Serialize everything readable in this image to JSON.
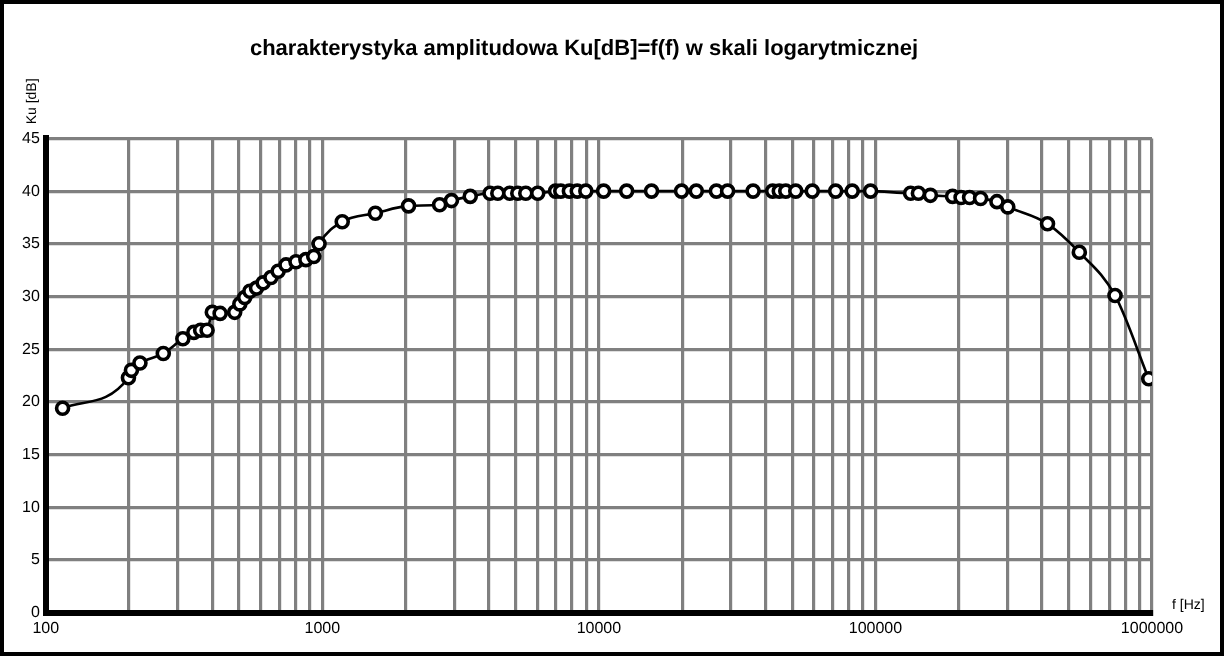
{
  "chart_data": {
    "type": "line",
    "title": "charakterystyka amplitudowa Ku[dB]=f(f) w skali logarytmicznej",
    "xlabel": "f [Hz]",
    "ylabel": "Ku [dB]",
    "log": "x",
    "grid": true,
    "legend": false,
    "marker": "circle",
    "line_style": "solid",
    "xlim": [
      100,
      1000000
    ],
    "ylim": [
      0,
      45
    ],
    "yticks": [
      0,
      5,
      10,
      15,
      20,
      25,
      30,
      35,
      40,
      45
    ],
    "xticks": [
      100,
      {
        "value": 200,
        "label": null
      },
      {
        "value": 300,
        "label": null
      },
      {
        "value": 400,
        "label": null
      },
      {
        "value": 500,
        "label": null
      },
      {
        "value": 600,
        "label": null
      },
      {
        "value": 700,
        "label": null
      },
      {
        "value": 800,
        "label": null
      },
      {
        "value": 900,
        "label": null
      },
      1000,
      {
        "value": 2000,
        "label": null
      },
      {
        "value": 3000,
        "label": null
      },
      {
        "value": 4000,
        "label": null
      },
      {
        "value": 5000,
        "label": null
      },
      {
        "value": 6000,
        "label": null
      },
      {
        "value": 7000,
        "label": null
      },
      {
        "value": 8000,
        "label": null
      },
      {
        "value": 9000,
        "label": null
      },
      10000,
      {
        "value": 20000,
        "label": null
      },
      {
        "value": 30000,
        "label": null
      },
      {
        "value": 40000,
        "label": null
      },
      {
        "value": 50000,
        "label": null
      },
      {
        "value": 60000,
        "label": null
      },
      {
        "value": 70000,
        "label": null
      },
      {
        "value": 80000,
        "label": null
      },
      {
        "value": 90000,
        "label": null
      },
      100000,
      {
        "value": 200000,
        "label": null
      },
      {
        "value": 300000,
        "label": null
      },
      {
        "value": 400000,
        "label": null
      },
      {
        "value": 500000,
        "label": null
      },
      {
        "value": 600000,
        "label": null
      },
      {
        "value": 700000,
        "label": null
      },
      {
        "value": 800000,
        "label": null
      },
      {
        "value": 900000,
        "label": null
      },
      1000000
    ],
    "x": [
      115,
      199,
      204,
      219,
      266,
      313,
      343,
      363,
      383,
      400,
      427,
      482,
      503,
      524,
      547,
      578,
      611,
      652,
      692,
      739,
      803,
      872,
      931,
      973,
      1180,
      1555,
      2050,
      2655,
      2930,
      3425,
      4040,
      4310,
      4760,
      5090,
      5440,
      6010,
      6970,
      7280,
      7820,
      8350,
      8970,
      10400,
      12600,
      15500,
      19900,
      22500,
      26600,
      29200,
      36100,
      42500,
      44900,
      47400,
      51500,
      59100,
      71800,
      82400,
      96000,
      134000,
      143000,
      158000,
      190000,
      204000,
      219000,
      240000,
      275000,
      301000,
      419000,
      546000,
      735000,
      973000
    ],
    "series": [
      {
        "color": "#000000",
        "values": [
          19.4,
          22.3,
          23.0,
          23.7,
          24.6,
          26.0,
          26.6,
          26.8,
          26.8,
          28.5,
          28.4,
          28.5,
          29.3,
          29.9,
          30.5,
          30.8,
          31.3,
          31.8,
          32.4,
          33.0,
          33.3,
          33.5,
          33.8,
          35.0,
          37.1,
          37.9,
          38.6,
          38.7,
          39.1,
          39.5,
          39.8,
          39.8,
          39.8,
          39.8,
          39.8,
          39.8,
          40.0,
          40.0,
          40.0,
          40.0,
          40.0,
          40.0,
          40.0,
          40.0,
          40.0,
          40.0,
          40.0,
          40.0,
          40.0,
          40.0,
          40.0,
          40.0,
          40.0,
          40.0,
          40.0,
          40.0,
          40.0,
          39.8,
          39.8,
          39.6,
          39.5,
          39.4,
          39.4,
          39.3,
          39.0,
          38.5,
          36.9,
          34.2,
          30.1,
          22.2
        ]
      }
    ]
  }
}
